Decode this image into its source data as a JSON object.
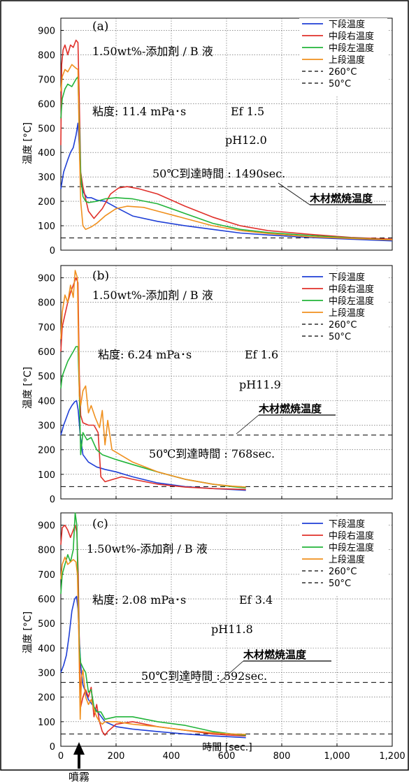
{
  "figure": {
    "x_axis_label": "時間 [sec.]",
    "y_axis_label": "温度 [°C]",
    "spray_label": "噴霧",
    "x_tick_labels": [
      "0",
      "200",
      "400",
      "600",
      "800",
      "1,000",
      "1,200"
    ],
    "y_tick_labels": [
      "0",
      "100",
      "200",
      "300",
      "400",
      "500",
      "600",
      "700",
      "800",
      "900"
    ]
  },
  "legend": {
    "items": [
      {
        "label": "下段温度",
        "color": "#1f3fd6",
        "dash": false
      },
      {
        "label": "中段右温度",
        "color": "#e0302a",
        "dash": false
      },
      {
        "label": "中段左温度",
        "color": "#22b43a",
        "dash": false
      },
      {
        "label": "上段温度",
        "color": "#f0901e",
        "dash": false
      },
      {
        "label": "260°C",
        "color": "#000000",
        "dash": true
      },
      {
        "label": "50°C",
        "color": "#000000",
        "dash": true
      }
    ]
  },
  "panels": [
    {
      "panel_label": "(a)",
      "condition": "1.50wt%-添加剤 / B 液",
      "viscosity": "粘度: 11.4 mPa･s",
      "ef": "Ef 1.5",
      "ph": "pH12.0",
      "reach_time": "50℃到達時間 : 1490sec.",
      "wood_label": "木材燃焼温度"
    },
    {
      "panel_label": "(b)",
      "condition": "1.50wt%-添加剤 / B 液",
      "viscosity": "粘度: 6.24 mPa･s",
      "ef": "Ef 1.6",
      "ph": "pH11.9",
      "reach_time": "50℃到達時間 : 768sec.",
      "wood_label": "木材燃焼温度"
    },
    {
      "panel_label": "(c)",
      "condition": "1.50wt%-添加剤 / B 液",
      "viscosity": "粘度: 2.08 mPa･s",
      "ef": "Ef 3.4",
      "ph": "pH11.8",
      "reach_time": "50℃到達時間 : 592sec.",
      "wood_label": "木材燃焼温度"
    }
  ],
  "chart_data": [
    {
      "type": "line",
      "xlabel": "",
      "ylabel": "温度 [°C]",
      "xlim": [
        0,
        1200
      ],
      "ylim": [
        0,
        950
      ],
      "grid": true,
      "legend_position": "top-right",
      "reference_lines": [
        260,
        50
      ],
      "series": [
        {
          "name": "下段温度",
          "color": "#1f3fd6",
          "x": [
            0,
            10,
            25,
            35,
            45,
            55,
            62,
            67,
            72,
            80,
            95,
            110,
            130,
            160,
            200,
            260,
            350,
            450,
            550,
            650,
            750,
            900,
            1050,
            1200
          ],
          "y": [
            250,
            320,
            370,
            400,
            420,
            470,
            520,
            420,
            280,
            240,
            215,
            215,
            205,
            200,
            175,
            140,
            118,
            100,
            85,
            70,
            62,
            52,
            45,
            38
          ]
        },
        {
          "name": "中段右温度",
          "color": "#e0302a",
          "x": [
            0,
            3,
            8,
            15,
            25,
            35,
            45,
            55,
            62,
            67,
            72,
            80,
            90,
            100,
            120,
            150,
            180,
            210,
            240,
            280,
            350,
            450,
            550,
            650,
            750,
            900,
            1050,
            1200
          ],
          "y": [
            430,
            760,
            820,
            840,
            800,
            840,
            830,
            860,
            850,
            600,
            320,
            260,
            210,
            160,
            130,
            170,
            230,
            255,
            260,
            252,
            230,
            180,
            135,
            100,
            80,
            65,
            52,
            45
          ]
        },
        {
          "name": "中段左温度",
          "color": "#22b43a",
          "x": [
            0,
            5,
            15,
            25,
            40,
            55,
            62,
            67,
            72,
            80,
            90,
            100,
            130,
            160,
            200,
            260,
            350,
            450,
            550,
            650,
            750,
            900,
            1050,
            1200
          ],
          "y": [
            540,
            620,
            660,
            680,
            670,
            700,
            710,
            500,
            310,
            220,
            200,
            195,
            200,
            210,
            215,
            210,
            190,
            150,
            110,
            85,
            72,
            60,
            50,
            42
          ]
        },
        {
          "name": "上段温度",
          "color": "#f0901e",
          "x": [
            0,
            5,
            15,
            25,
            40,
            55,
            62,
            67,
            72,
            80,
            90,
            110,
            130,
            160,
            200,
            240,
            300,
            350,
            450,
            550,
            650,
            750,
            900,
            1050,
            1200
          ],
          "y": [
            650,
            710,
            740,
            730,
            760,
            745,
            740,
            420,
            200,
            100,
            85,
            95,
            110,
            140,
            170,
            180,
            175,
            160,
            130,
            100,
            80,
            68,
            55,
            48,
            42
          ]
        }
      ]
    },
    {
      "type": "line",
      "xlabel": "",
      "ylabel": "温度 [°C]",
      "xlim": [
        0,
        1200
      ],
      "ylim": [
        0,
        950
      ],
      "grid": true,
      "legend_position": "top-right",
      "reference_lines": [
        260,
        50
      ],
      "series": [
        {
          "name": "下段温度",
          "color": "#1f3fd6",
          "x": [
            0,
            10,
            20,
            30,
            40,
            50,
            57,
            63,
            70,
            80,
            100,
            130,
            160,
            200,
            260,
            350,
            450,
            550,
            620,
            670
          ],
          "y": [
            260,
            300,
            330,
            360,
            380,
            395,
            400,
            360,
            260,
            180,
            150,
            130,
            120,
            110,
            90,
            65,
            50,
            42,
            38,
            35
          ]
        },
        {
          "name": "中段右温度",
          "color": "#e0302a",
          "x": [
            0,
            5,
            15,
            25,
            35,
            45,
            55,
            62,
            67,
            72,
            80,
            100,
            120,
            135,
            145,
            160,
            190,
            220,
            260,
            350,
            450,
            550,
            620,
            670
          ],
          "y": [
            600,
            700,
            750,
            800,
            840,
            870,
            900,
            880,
            500,
            340,
            310,
            300,
            300,
            270,
            90,
            70,
            80,
            90,
            80,
            60,
            48,
            42,
            40,
            38
          ]
        },
        {
          "name": "中段左温度",
          "color": "#22b43a",
          "x": [
            0,
            5,
            15,
            25,
            35,
            45,
            55,
            62,
            67,
            72,
            80,
            95,
            110,
            130,
            150,
            200,
            260,
            350,
            450,
            550,
            620,
            670
          ],
          "y": [
            450,
            500,
            530,
            560,
            580,
            600,
            620,
            620,
            430,
            180,
            270,
            240,
            250,
            200,
            180,
            160,
            140,
            110,
            80,
            60,
            50,
            45
          ]
        },
        {
          "name": "上段温度",
          "color": "#f0901e",
          "x": [
            0,
            5,
            15,
            25,
            35,
            45,
            52,
            60,
            67,
            72,
            80,
            90,
            100,
            110,
            125,
            140,
            150,
            160,
            170,
            185,
            200,
            260,
            350,
            450,
            550,
            620,
            670
          ],
          "y": [
            650,
            760,
            830,
            800,
            870,
            820,
            930,
            900,
            420,
            380,
            440,
            460,
            350,
            380,
            330,
            290,
            360,
            220,
            320,
            200,
            190,
            150,
            110,
            80,
            60,
            52,
            48
          ]
        }
      ]
    },
    {
      "type": "line",
      "xlabel": "時間 [sec.]",
      "ylabel": "温度 [°C]",
      "xlim": [
        0,
        1200
      ],
      "ylim": [
        0,
        950
      ],
      "grid": true,
      "legend_position": "top-right",
      "reference_lines": [
        260,
        50
      ],
      "series": [
        {
          "name": "下段温度",
          "color": "#1f3fd6",
          "x": [
            0,
            10,
            20,
            30,
            40,
            50,
            57,
            62,
            67,
            72,
            80,
            90,
            100,
            120,
            140,
            160,
            200,
            260,
            350,
            450,
            550,
            620,
            670
          ],
          "y": [
            300,
            330,
            370,
            450,
            550,
            600,
            610,
            560,
            430,
            330,
            250,
            220,
            190,
            160,
            130,
            100,
            80,
            70,
            60,
            50,
            42,
            38,
            35
          ]
        },
        {
          "name": "中段右温度",
          "color": "#e0302a",
          "x": [
            0,
            5,
            15,
            25,
            35,
            45,
            52,
            58,
            63,
            67,
            72,
            80,
            90,
            100,
            110,
            120,
            130,
            140,
            150,
            160,
            170,
            200,
            260,
            350,
            450,
            550,
            620,
            670
          ],
          "y": [
            820,
            890,
            900,
            880,
            850,
            880,
            900,
            870,
            700,
            420,
            160,
            200,
            230,
            200,
            240,
            120,
            170,
            100,
            60,
            45,
            60,
            90,
            100,
            80,
            65,
            50,
            45,
            42
          ]
        },
        {
          "name": "中段左温度",
          "color": "#22b43a",
          "x": [
            0,
            5,
            15,
            25,
            35,
            45,
            52,
            58,
            62,
            67,
            72,
            80,
            90,
            100,
            110,
            120,
            130,
            145,
            160,
            200,
            260,
            350,
            450,
            550,
            620,
            670
          ],
          "y": [
            620,
            700,
            740,
            780,
            750,
            800,
            950,
            900,
            650,
            400,
            340,
            320,
            300,
            220,
            230,
            160,
            140,
            140,
            110,
            120,
            120,
            100,
            85,
            60,
            50,
            45
          ]
        },
        {
          "name": "上段温度",
          "color": "#f0901e",
          "x": [
            0,
            5,
            15,
            25,
            35,
            45,
            55,
            60,
            65,
            70,
            75,
            80,
            90,
            100,
            110,
            120,
            130,
            140,
            150,
            160,
            200,
            260,
            350,
            450,
            550,
            620,
            670
          ],
          "y": [
            680,
            740,
            770,
            740,
            750,
            760,
            750,
            700,
            450,
            110,
            280,
            310,
            200,
            170,
            190,
            150,
            120,
            100,
            90,
            100,
            100,
            90,
            80,
            65,
            55,
            50,
            48
          ]
        }
      ]
    }
  ]
}
